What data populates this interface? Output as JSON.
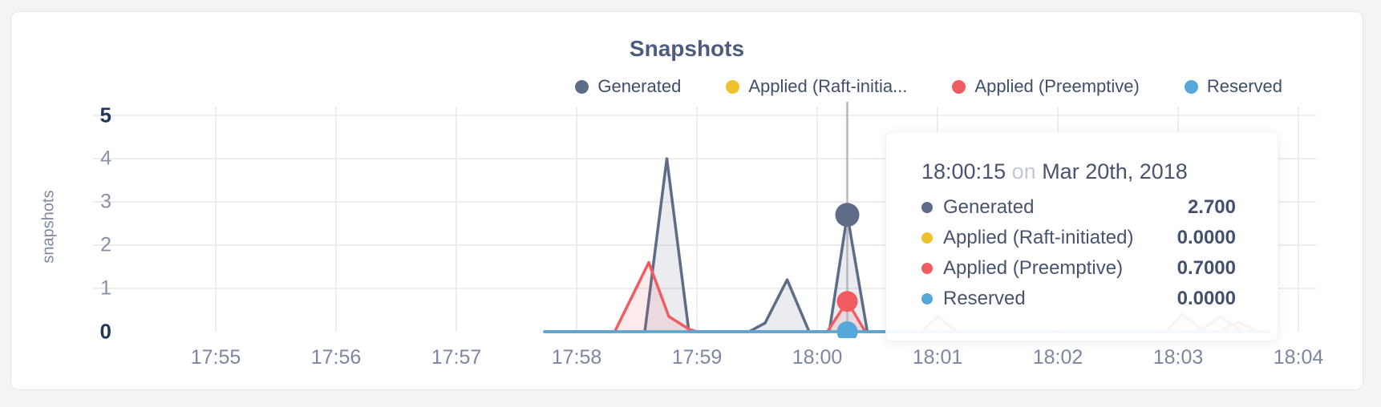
{
  "chart_data": {
    "type": "area",
    "title": "Snapshots",
    "ylabel": "snapshots",
    "xlabel": "",
    "ylim": [
      0,
      5
    ],
    "y_ticks": [
      0,
      1,
      2,
      3,
      4,
      5
    ],
    "y_ticks_emphasized": [
      0,
      5
    ],
    "x_ticks": [
      "17:55",
      "17:56",
      "17:57",
      "17:58",
      "17:59",
      "18:00",
      "18:01",
      "18:02",
      "18:03",
      "18:04"
    ],
    "grid": true,
    "legend_position": "top-right",
    "series": [
      {
        "name": "Generated",
        "legend_label": "Generated",
        "color": "#5e6c87",
        "fill": "rgba(94,108,135,0.13)",
        "points": [
          [
            "17:57:44",
            0
          ],
          [
            "17:58:34",
            0
          ],
          [
            "17:58:45",
            4.0
          ],
          [
            "17:58:56",
            0
          ],
          [
            "17:59:26",
            0
          ],
          [
            "17:59:34",
            0.2
          ],
          [
            "17:59:45",
            1.2
          ],
          [
            "17:59:56",
            0
          ],
          [
            "18:00:06",
            0
          ],
          [
            "18:00:15",
            2.7
          ],
          [
            "18:00:25",
            0
          ],
          [
            "18:00:52",
            0
          ],
          [
            "18:01:00",
            0.35
          ],
          [
            "18:01:10",
            0
          ],
          [
            "18:02:54",
            0
          ],
          [
            "18:03:02",
            0.4
          ],
          [
            "18:03:12",
            0.05
          ],
          [
            "18:03:21",
            0.35
          ],
          [
            "18:03:32",
            0
          ],
          [
            "18:03:45",
            0
          ]
        ]
      },
      {
        "name": "Applied (Raft-initiated)",
        "legend_label": "Applied (Raft-initia...",
        "color": "#f0c12f",
        "fill": "rgba(240,193,47,0.12)",
        "points": [
          [
            "17:57:44",
            0
          ],
          [
            "18:03:45",
            0
          ]
        ]
      },
      {
        "name": "Applied (Preemptive)",
        "legend_label": "Applied (Preemptive)",
        "color": "#f05c62",
        "fill": "rgba(240,92,98,0.12)",
        "points": [
          [
            "17:57:44",
            0
          ],
          [
            "17:58:19",
            0
          ],
          [
            "17:58:36",
            1.6
          ],
          [
            "17:58:46",
            0.35
          ],
          [
            "17:58:56",
            0.06
          ],
          [
            "17:59:00",
            0
          ],
          [
            "18:00:05",
            0
          ],
          [
            "18:00:15",
            0.7
          ],
          [
            "18:00:24",
            0
          ],
          [
            "18:03:20",
            0
          ],
          [
            "18:03:30",
            0.22
          ],
          [
            "18:03:40",
            0
          ],
          [
            "18:03:45",
            0
          ]
        ]
      },
      {
        "name": "Reserved",
        "legend_label": "Reserved",
        "color": "#57a8da",
        "fill": "rgba(87,168,218,0.12)",
        "points": [
          [
            "17:57:44",
            0
          ],
          [
            "18:03:45",
            0
          ]
        ]
      }
    ],
    "highlight": {
      "time": "18:00:15",
      "values": [
        2.7,
        0,
        0.7,
        0
      ]
    }
  },
  "tooltip": {
    "time": "18:00:15",
    "separator": "on",
    "date": "Mar 20th, 2018",
    "rows": [
      {
        "label": "Generated",
        "value": "2.700"
      },
      {
        "label": "Applied (Raft-initiated)",
        "value": "0.0000"
      },
      {
        "label": "Applied (Preemptive)",
        "value": "0.7000"
      },
      {
        "label": "Reserved",
        "value": "0.0000"
      }
    ]
  },
  "colors": {
    "crosshair": "#b5b7ba",
    "gridline": "#ededed",
    "page_background": "#f4f4f5",
    "card_background": "#ffffff"
  }
}
